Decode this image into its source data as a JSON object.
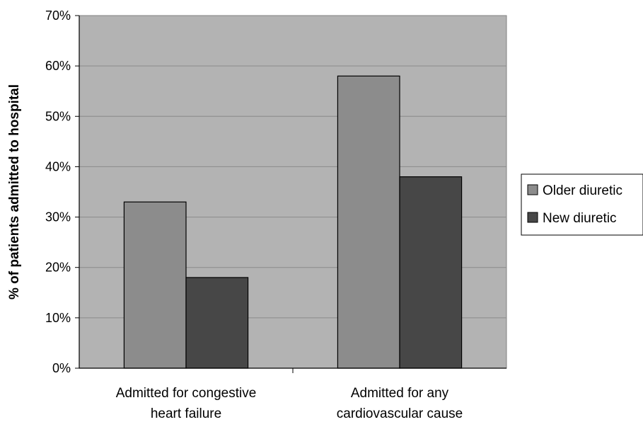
{
  "chart_data": {
    "type": "bar",
    "title": "",
    "xlabel": "",
    "ylabel": "% of patients admitted to hospital",
    "categories": [
      [
        "Admitted for congestive",
        "heart failure"
      ],
      [
        "Admitted for any",
        "cardiovascular cause"
      ]
    ],
    "series": [
      {
        "name": "Older diuretic",
        "values": [
          33,
          58
        ],
        "color": "#8c8c8c"
      },
      {
        "name": "New diuretic",
        "values": [
          18,
          38
        ],
        "color": "#474747"
      }
    ],
    "ylim": [
      0,
      70
    ],
    "yticks": [
      "0%",
      "10%",
      "20%",
      "30%",
      "40%",
      "50%",
      "60%",
      "70%"
    ],
    "grid": true,
    "legend": "right",
    "plot_background": "#b3b3b3"
  }
}
